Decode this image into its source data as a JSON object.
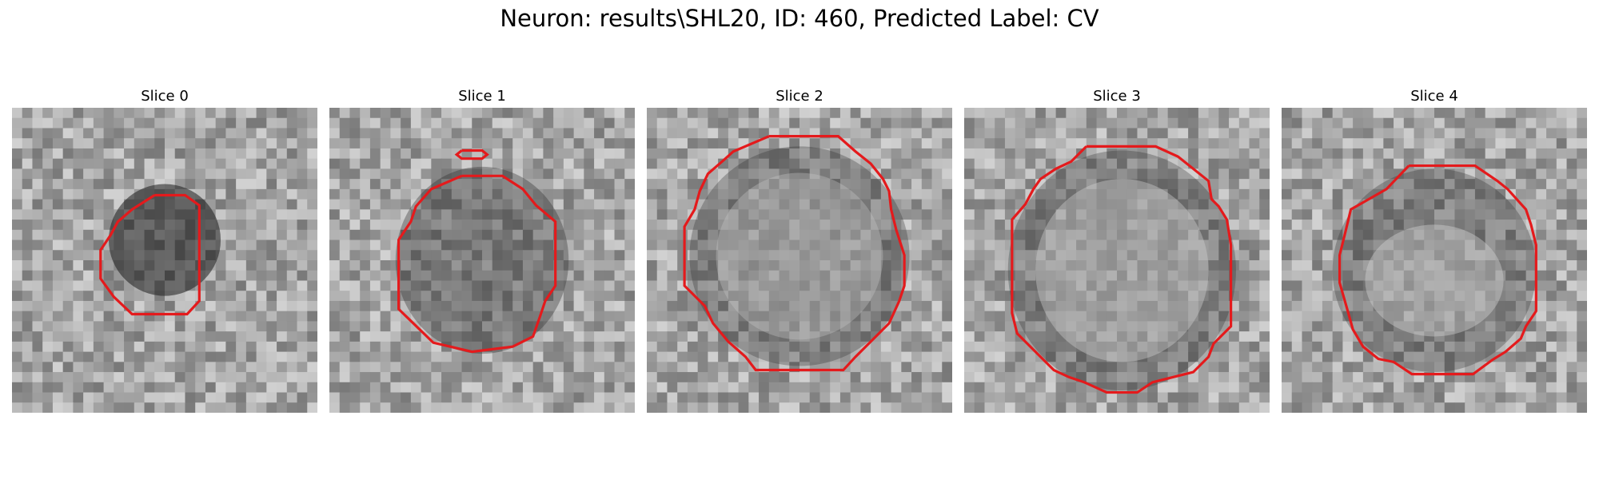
{
  "figure": {
    "title": "Neuron: results\\SHL20, ID: 460, Predicted Label: CV"
  },
  "panels": [
    {
      "title": "Slice 0"
    },
    {
      "title": "Slice 1"
    },
    {
      "title": "Slice 2"
    },
    {
      "title": "Slice 3"
    },
    {
      "title": "Slice 4"
    }
  ],
  "colors": {
    "contour": "#e41a1c"
  }
}
